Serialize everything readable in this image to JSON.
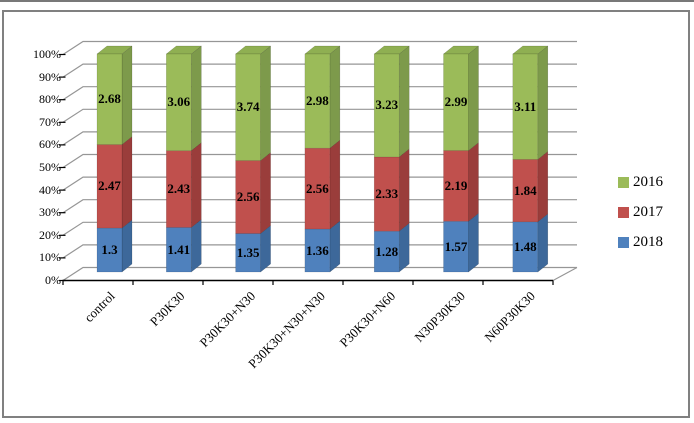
{
  "figure": {
    "background": "#FFFFFF",
    "border_color": "#808080"
  },
  "colors": {
    "gridline": "#969696",
    "axis": "#000000",
    "text": "#000000"
  },
  "chart_data": {
    "type": "bar",
    "subtype": "3d-100-percent-stacked-column",
    "title": "",
    "xlabel": "",
    "ylabel": "",
    "grid": true,
    "legend_position": "right",
    "categories": [
      "control",
      "P30K30",
      "P30K30+N30",
      "P30K30+N30+N30",
      "P30K30+N60",
      "N30P30K30",
      "N60P30K30"
    ],
    "series": [
      {
        "name": "2018",
        "color": "#4F81BD",
        "side_color": "#3D689A",
        "values": [
          1.3,
          1.41,
          1.35,
          1.36,
          1.28,
          1.57,
          1.48
        ],
        "labels": [
          "1.3",
          "1.41",
          "1.35",
          "1.36",
          "1.28",
          "1.57",
          "1.48"
        ]
      },
      {
        "name": "2017",
        "color": "#C0504D",
        "side_color": "#9A3D3B",
        "values": [
          2.47,
          2.43,
          2.56,
          2.56,
          2.33,
          2.19,
          1.84
        ],
        "labels": [
          "2.47",
          "2.43",
          "2.56",
          "2.56",
          "2.33",
          "2.19",
          "1.84"
        ]
      },
      {
        "name": "2016",
        "color": "#9BBB59",
        "side_color": "#7D9A4B",
        "top_color": "#8FAF52",
        "values": [
          2.68,
          3.06,
          3.74,
          2.98,
          3.23,
          2.99,
          3.11
        ],
        "labels": [
          "2.68",
          "3.06",
          "3.74",
          "2.98",
          "3.23",
          "2.99",
          "3.11"
        ]
      }
    ],
    "legend_entries": [
      "2016",
      "2017",
      "2018"
    ],
    "y_axis": {
      "min": 0,
      "max": 100,
      "tick_labels": [
        "0%",
        "10%",
        "20%",
        "30%",
        "40%",
        "50%",
        "60%",
        "70%",
        "80%",
        "90%",
        "100%"
      ]
    }
  }
}
